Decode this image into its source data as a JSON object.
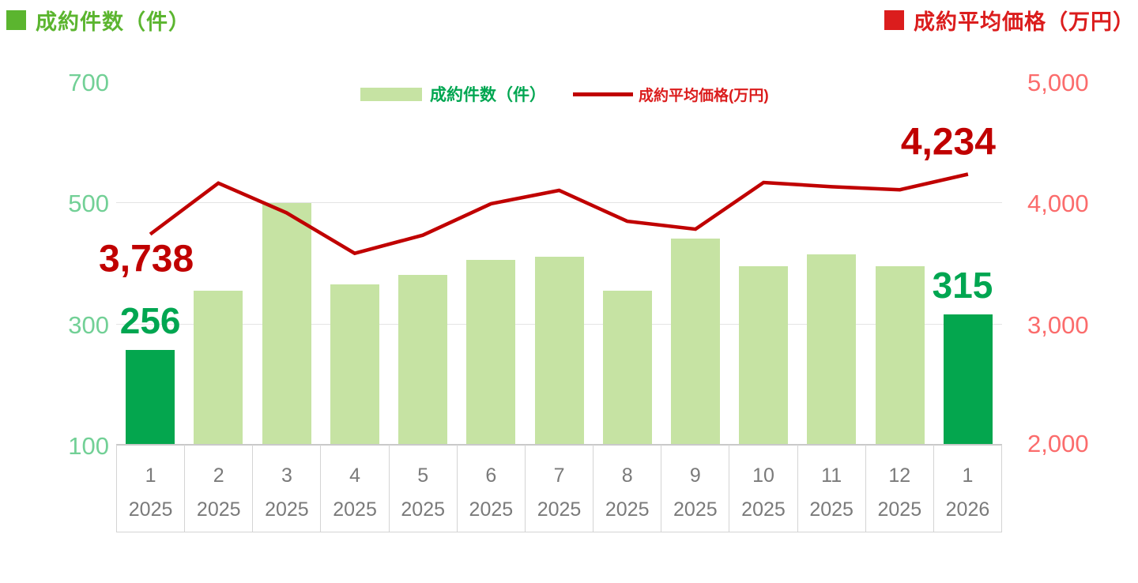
{
  "header": {
    "left_title": "成約件数（件）",
    "right_title": "成約平均価格（万円）"
  },
  "legend": {
    "bar_label": "成約件数（件）",
    "line_label": "成約平均価格(万円)"
  },
  "chart_data": {
    "type": "bar+line combo",
    "categories": [
      {
        "month": "1",
        "year": "2025"
      },
      {
        "month": "2",
        "year": "2025"
      },
      {
        "month": "3",
        "year": "2025"
      },
      {
        "month": "4",
        "year": "2025"
      },
      {
        "month": "5",
        "year": "2025"
      },
      {
        "month": "6",
        "year": "2025"
      },
      {
        "month": "7",
        "year": "2025"
      },
      {
        "month": "8",
        "year": "2025"
      },
      {
        "month": "9",
        "year": "2025"
      },
      {
        "month": "10",
        "year": "2025"
      },
      {
        "month": "11",
        "year": "2025"
      },
      {
        "month": "12",
        "year": "2025"
      },
      {
        "month": "1",
        "year": "2026"
      }
    ],
    "series": [
      {
        "name": "成約件数（件）",
        "type": "bar",
        "axis": "left",
        "values": [
          256,
          355,
          499,
          365,
          380,
          405,
          410,
          355,
          440,
          395,
          415,
          395,
          315
        ],
        "highlight_indices": [
          0,
          12
        ]
      },
      {
        "name": "成約平均価格(万円)",
        "type": "line",
        "axis": "right",
        "values": [
          3738,
          4160,
          3915,
          3580,
          3730,
          3990,
          4100,
          3845,
          3780,
          4165,
          4130,
          4105,
          4234
        ]
      }
    ],
    "left_axis": {
      "ticks": [
        "700",
        "500",
        "300",
        "100"
      ],
      "tick_values": [
        700,
        500,
        300,
        100
      ],
      "min": 100,
      "max": 700,
      "gridlines_at": [
        500,
        300
      ]
    },
    "right_axis": {
      "ticks": [
        "5,000",
        "4,000",
        "3,000",
        "2,000"
      ],
      "tick_values": [
        5000,
        4000,
        3000,
        2000
      ],
      "min": 2000,
      "max": 5000
    },
    "annotations": [
      {
        "series": "bar",
        "index": 0,
        "text": "256",
        "placement": "above"
      },
      {
        "series": "bar",
        "index": 12,
        "text": "315",
        "placement": "above"
      },
      {
        "series": "line",
        "index": 0,
        "text": "3,738",
        "placement": "below"
      },
      {
        "series": "line",
        "index": 12,
        "text": "4,234",
        "placement": "above"
      }
    ]
  },
  "colors": {
    "title_green": "#5BB52F",
    "title_red": "#DB1D1D",
    "bar_light": "#C6E3A3",
    "bar_dark": "#04A64E",
    "line": "#C00000",
    "legend_bar_text": "#00A651",
    "legend_line_text": "#DB1D1D",
    "annotation_green": "#00A651",
    "annotation_red": "#C00000",
    "axis_left_label": "#72D096",
    "axis_right_label": "#FB6C6C",
    "axis_text": "#7A7A7A",
    "grid": "#E4E4E4",
    "baseline": "#C9C9C9",
    "axis_border": "#D4D4D4"
  }
}
